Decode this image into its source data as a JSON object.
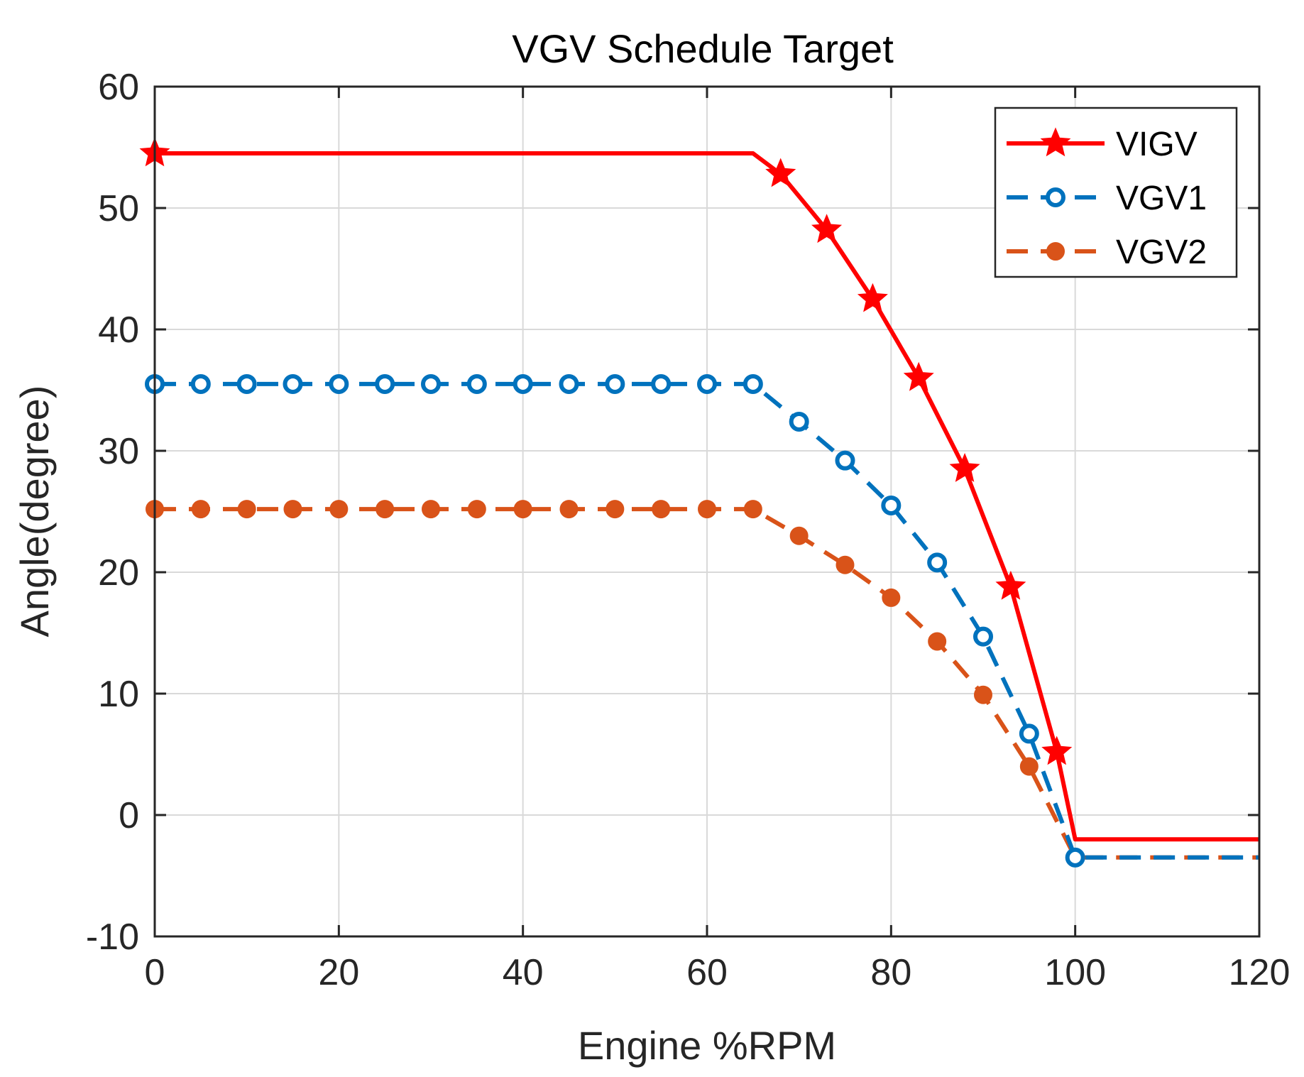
{
  "chart_data": {
    "type": "line",
    "title": "VGV Schedule Target",
    "xlabel": "Engine %RPM",
    "ylabel": "Angle(degree)",
    "xlim": [
      0,
      120
    ],
    "ylim": [
      -10,
      60
    ],
    "xticks": [
      0,
      20,
      40,
      60,
      80,
      100,
      120
    ],
    "yticks": [
      -10,
      0,
      10,
      20,
      30,
      40,
      50,
      60
    ],
    "grid": true,
    "legend_position": "top-right",
    "series": [
      {
        "name": "VIGV",
        "color": "#ff0000",
        "line": "solid",
        "marker": "star",
        "x": [
          0,
          65,
          68,
          73,
          78,
          83,
          88,
          93,
          98,
          100,
          120
        ],
        "y": [
          54.5,
          54.5,
          52.8,
          48.2,
          42.5,
          36.0,
          28.5,
          18.8,
          5.2,
          -2.0,
          -2.0
        ],
        "marker_x": [
          0,
          68,
          73,
          78,
          83,
          88,
          93,
          98
        ],
        "marker_y": [
          54.5,
          52.8,
          48.2,
          42.5,
          36.0,
          28.5,
          18.8,
          5.2
        ]
      },
      {
        "name": "VGV1",
        "color": "#0072bd",
        "line": "dashed",
        "marker": "open-circle",
        "x": [
          0,
          5,
          10,
          15,
          20,
          25,
          30,
          35,
          40,
          45,
          50,
          55,
          60,
          65,
          70,
          75,
          80,
          85,
          90,
          95,
          100,
          120
        ],
        "y": [
          35.5,
          35.5,
          35.5,
          35.5,
          35.5,
          35.5,
          35.5,
          35.5,
          35.5,
          35.5,
          35.5,
          35.5,
          35.5,
          35.5,
          32.4,
          29.2,
          25.5,
          20.8,
          14.7,
          6.7,
          -3.5,
          -3.5
        ],
        "marker_x": [
          0,
          5,
          10,
          15,
          20,
          25,
          30,
          35,
          40,
          45,
          50,
          55,
          60,
          65,
          70,
          75,
          80,
          85,
          90,
          95,
          100
        ],
        "marker_y": [
          35.5,
          35.5,
          35.5,
          35.5,
          35.5,
          35.5,
          35.5,
          35.5,
          35.5,
          35.5,
          35.5,
          35.5,
          35.5,
          35.5,
          32.4,
          29.2,
          25.5,
          20.8,
          14.7,
          6.7,
          -3.5
        ]
      },
      {
        "name": "VGV2",
        "color": "#d95319",
        "line": "dashed",
        "marker": "filled-circle",
        "x": [
          0,
          5,
          10,
          15,
          20,
          25,
          30,
          35,
          40,
          45,
          50,
          55,
          60,
          65,
          70,
          75,
          80,
          85,
          90,
          95,
          100,
          120
        ],
        "y": [
          25.2,
          25.2,
          25.2,
          25.2,
          25.2,
          25.2,
          25.2,
          25.2,
          25.2,
          25.2,
          25.2,
          25.2,
          25.2,
          25.2,
          23.0,
          20.6,
          17.9,
          14.3,
          9.9,
          4.0,
          -3.5,
          -3.5
        ],
        "marker_x": [
          0,
          5,
          10,
          15,
          20,
          25,
          30,
          35,
          40,
          45,
          50,
          55,
          60,
          65,
          70,
          75,
          80,
          85,
          90,
          95,
          100
        ],
        "marker_y": [
          25.2,
          25.2,
          25.2,
          25.2,
          25.2,
          25.2,
          25.2,
          25.2,
          25.2,
          25.2,
          25.2,
          25.2,
          25.2,
          25.2,
          23.0,
          20.6,
          17.9,
          14.3,
          9.9,
          4.0,
          -3.5
        ]
      }
    ]
  }
}
